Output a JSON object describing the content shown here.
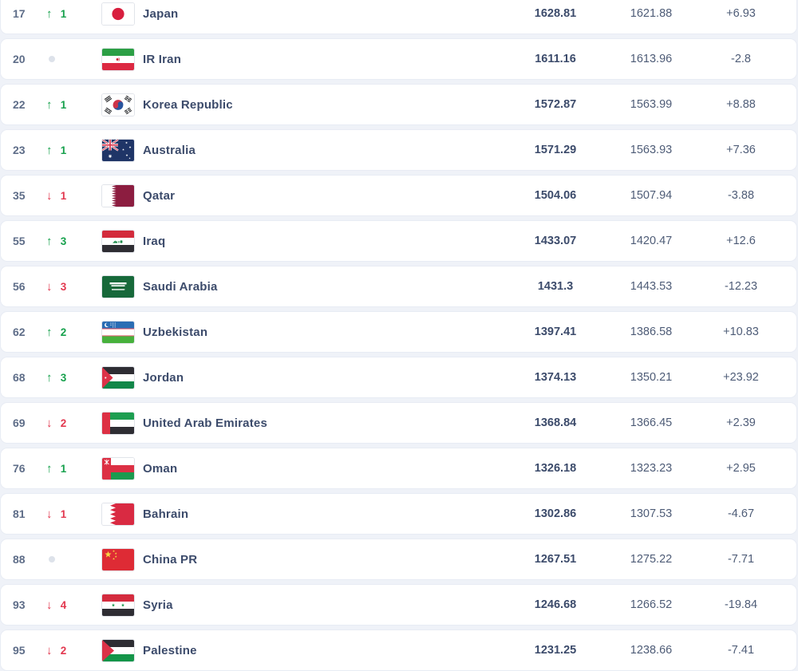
{
  "colors": {
    "up_green": "#17a14d",
    "down_red": "#e2384f",
    "primary_text": "#3c4b6b",
    "secondary_text": "#4e5c77",
    "rank_text": "#5e6d88",
    "no_change_dot": "#dde2ea",
    "row_border": "#e8ecf4",
    "page_background": "#eff2f8"
  },
  "icons": {
    "up_arrow": "↑",
    "down_arrow": "↓"
  },
  "rows": [
    {
      "rank": "17",
      "movement_dir": "up",
      "movement_value": "1",
      "country": "Japan",
      "flag": "japan",
      "points_total": "1628.81",
      "points_previous": "1621.88",
      "points_change": "+6.93"
    },
    {
      "rank": "20",
      "movement_dir": "none",
      "movement_value": "",
      "country": "IR Iran",
      "flag": "iran",
      "points_total": "1611.16",
      "points_previous": "1613.96",
      "points_change": "-2.8"
    },
    {
      "rank": "22",
      "movement_dir": "up",
      "movement_value": "1",
      "country": "Korea Republic",
      "flag": "korea",
      "points_total": "1572.87",
      "points_previous": "1563.99",
      "points_change": "+8.88"
    },
    {
      "rank": "23",
      "movement_dir": "up",
      "movement_value": "1",
      "country": "Australia",
      "flag": "australia",
      "points_total": "1571.29",
      "points_previous": "1563.93",
      "points_change": "+7.36"
    },
    {
      "rank": "35",
      "movement_dir": "down",
      "movement_value": "1",
      "country": "Qatar",
      "flag": "qatar",
      "points_total": "1504.06",
      "points_previous": "1507.94",
      "points_change": "-3.88"
    },
    {
      "rank": "55",
      "movement_dir": "up",
      "movement_value": "3",
      "country": "Iraq",
      "flag": "iraq",
      "points_total": "1433.07",
      "points_previous": "1420.47",
      "points_change": "+12.6"
    },
    {
      "rank": "56",
      "movement_dir": "down",
      "movement_value": "3",
      "country": "Saudi Arabia",
      "flag": "saudi",
      "points_total": "1431.3",
      "points_previous": "1443.53",
      "points_change": "-12.23"
    },
    {
      "rank": "62",
      "movement_dir": "up",
      "movement_value": "2",
      "country": "Uzbekistan",
      "flag": "uzbekistan",
      "points_total": "1397.41",
      "points_previous": "1386.58",
      "points_change": "+10.83"
    },
    {
      "rank": "68",
      "movement_dir": "up",
      "movement_value": "3",
      "country": "Jordan",
      "flag": "jordan",
      "points_total": "1374.13",
      "points_previous": "1350.21",
      "points_change": "+23.92"
    },
    {
      "rank": "69",
      "movement_dir": "down",
      "movement_value": "2",
      "country": "United Arab Emirates",
      "flag": "uae",
      "points_total": "1368.84",
      "points_previous": "1366.45",
      "points_change": "+2.39"
    },
    {
      "rank": "76",
      "movement_dir": "up",
      "movement_value": "1",
      "country": "Oman",
      "flag": "oman",
      "points_total": "1326.18",
      "points_previous": "1323.23",
      "points_change": "+2.95"
    },
    {
      "rank": "81",
      "movement_dir": "down",
      "movement_value": "1",
      "country": "Bahrain",
      "flag": "bahrain",
      "points_total": "1302.86",
      "points_previous": "1307.53",
      "points_change": "-4.67"
    },
    {
      "rank": "88",
      "movement_dir": "none",
      "movement_value": "",
      "country": "China PR",
      "flag": "china",
      "points_total": "1267.51",
      "points_previous": "1275.22",
      "points_change": "-7.71"
    },
    {
      "rank": "93",
      "movement_dir": "down",
      "movement_value": "4",
      "country": "Syria",
      "flag": "syria",
      "points_total": "1246.68",
      "points_previous": "1266.52",
      "points_change": "-19.84"
    },
    {
      "rank": "95",
      "movement_dir": "down",
      "movement_value": "2",
      "country": "Palestine",
      "flag": "palestine",
      "points_total": "1231.25",
      "points_previous": "1238.66",
      "points_change": "-7.41"
    }
  ]
}
